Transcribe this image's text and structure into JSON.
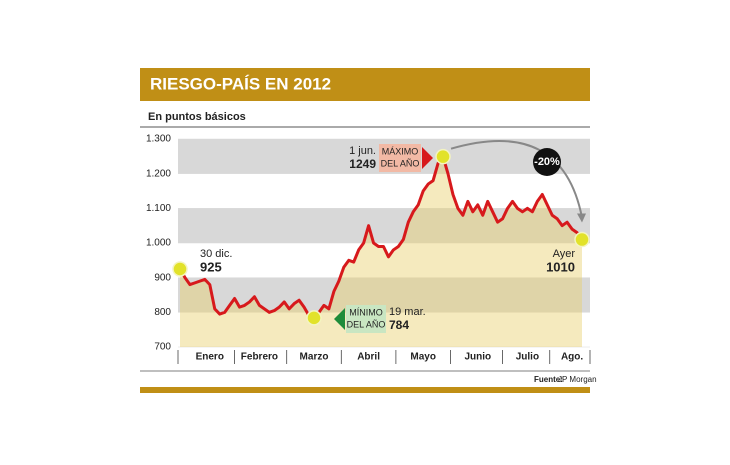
{
  "chart_data": {
    "type": "line",
    "title": "RIESGO-PAÍS EN 2012",
    "subtitle": "En puntos básicos",
    "categories": [
      null,
      null,
      null,
      null,
      null,
      null,
      "Enero",
      null,
      null,
      null,
      null,
      null,
      null,
      null,
      null,
      null,
      "Febrero",
      null,
      null,
      null,
      null,
      null,
      null,
      null,
      null,
      null,
      null,
      "Marzo",
      null,
      null,
      null,
      null,
      null,
      null,
      null,
      null,
      null,
      null,
      "Abril",
      null,
      null,
      null,
      null,
      null,
      null,
      null,
      null,
      null,
      null,
      "Mayo",
      null,
      null,
      null,
      null,
      null,
      null,
      null,
      null,
      null,
      null,
      "Junio",
      null,
      null,
      null,
      null,
      null,
      null,
      null,
      null,
      null,
      "Julio",
      null,
      null,
      null,
      null,
      null,
      null,
      null,
      null,
      "Ago.",
      null,
      null
    ],
    "series": [
      {
        "color": "#d7191c",
        "values": [
          925,
          900,
          880,
          885,
          890,
          895,
          880,
          810,
          795,
          800,
          820,
          840,
          815,
          820,
          830,
          845,
          820,
          810,
          800,
          805,
          815,
          830,
          810,
          825,
          835,
          815,
          790,
          784,
          800,
          820,
          810,
          860,
          890,
          930,
          950,
          945,
          980,
          1000,
          1050,
          1000,
          990,
          990,
          960,
          980,
          990,
          1010,
          1060,
          1090,
          1110,
          1150,
          1170,
          1180,
          1230,
          1249,
          1200,
          1140,
          1100,
          1080,
          1120,
          1090,
          1110,
          1080,
          1120,
          1090,
          1060,
          1070,
          1100,
          1120,
          1100,
          1090,
          1100,
          1090,
          1120,
          1140,
          1110,
          1080,
          1070,
          1050,
          1060,
          1040,
          1030,
          1010
        ]
      }
    ],
    "ylim": [
      700,
      1300
    ],
    "yticks": [
      {
        "value": 1300,
        "label": "1.300"
      },
      {
        "value": 1200,
        "label": "1.200"
      },
      {
        "value": 1100,
        "label": "1.100"
      },
      {
        "value": 1000,
        "label": "1.000"
      },
      900,
      800,
      700
    ],
    "grid": true,
    "annotations": {
      "start": {
        "date": "30 dic."
      },
      "max": {
        "date": "1 jun.",
        "label_lines": [
          "MÁXIMO",
          "DEL AÑO"
        ]
      },
      "min": {
        "date": "19 mar.",
        "label_lines": [
          "MÍNIMO",
          "DEL AÑO"
        ]
      },
      "end": {
        "date": "Ayer"
      },
      "change": "-20%"
    },
    "source_label": "Fuente:",
    "source": "JP Morgan"
  }
}
